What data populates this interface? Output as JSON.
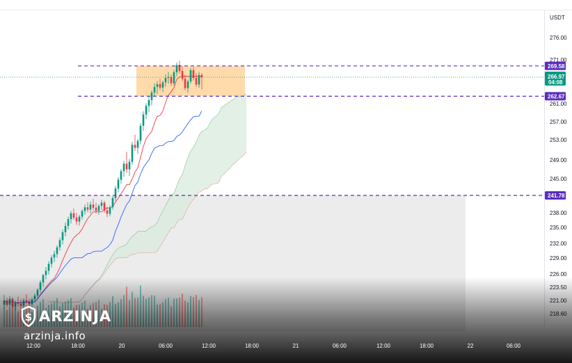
{
  "chart_data": {
    "type": "candlestick",
    "quote_currency": "USDT",
    "y_ticks": [
      "276.00",
      "271.00",
      "261.00",
      "257.00",
      "253.00",
      "249.00",
      "245.00",
      "238.00",
      "235.00",
      "232.00",
      "229.00",
      "226.00",
      "223.50",
      "221.00",
      "218.60"
    ],
    "x_ticks": [
      "12:00",
      "18:00",
      "20",
      "06:00",
      "12:00",
      "18:00",
      "21",
      "06:00",
      "12:00",
      "18:00",
      "22",
      "06:00"
    ],
    "levels": [
      {
        "value": 269.58,
        "label": "269.58"
      },
      {
        "value": 262.67,
        "label": "262.67"
      },
      {
        "value": 241.78,
        "label": "241.78"
      }
    ],
    "last_price": {
      "value": 266.97,
      "label": "266.97",
      "countdown": "04:08"
    },
    "zones": [
      {
        "type": "resistance",
        "low": 262.67,
        "high": 269.58
      },
      {
        "type": "range",
        "low": 215,
        "high": 241.78
      }
    ],
    "candles": [
      [
        220.2,
        222.0,
        219.5,
        221.0
      ],
      [
        221.0,
        221.5,
        219.8,
        220.2
      ],
      [
        220.2,
        221.8,
        219.9,
        221.3
      ],
      [
        221.3,
        221.6,
        219.6,
        219.9
      ],
      [
        219.9,
        221.0,
        219.2,
        220.6
      ],
      [
        220.6,
        221.7,
        219.9,
        220.4
      ],
      [
        220.4,
        221.2,
        219.5,
        220.0
      ],
      [
        220.0,
        221.4,
        219.6,
        221.0
      ],
      [
        221.0,
        222.2,
        220.4,
        220.7
      ],
      [
        220.7,
        221.3,
        219.9,
        220.3
      ],
      [
        220.3,
        221.5,
        219.8,
        221.2
      ],
      [
        221.2,
        222.3,
        220.6,
        221.9
      ],
      [
        221.9,
        223.3,
        221.3,
        223.0
      ],
      [
        223.0,
        224.8,
        222.5,
        224.4
      ],
      [
        224.4,
        226.0,
        223.6,
        225.8
      ],
      [
        225.8,
        227.3,
        225.0,
        226.6
      ],
      [
        226.6,
        228.4,
        225.9,
        227.9
      ],
      [
        227.9,
        229.6,
        227.2,
        229.1
      ],
      [
        229.1,
        230.5,
        228.2,
        229.8
      ],
      [
        229.8,
        231.6,
        229.0,
        231.2
      ],
      [
        231.2,
        233.1,
        230.5,
        232.6
      ],
      [
        232.6,
        234.6,
        231.8,
        234.1
      ],
      [
        234.1,
        236.0,
        233.3,
        235.3
      ],
      [
        235.3,
        237.2,
        234.6,
        236.7
      ],
      [
        236.7,
        238.4,
        235.8,
        237.9
      ],
      [
        237.9,
        238.9,
        236.5,
        237.0
      ],
      [
        237.0,
        238.0,
        235.5,
        236.2
      ],
      [
        236.2,
        237.6,
        235.4,
        237.2
      ],
      [
        237.2,
        238.8,
        236.6,
        238.4
      ],
      [
        238.4,
        239.8,
        237.6,
        239.2
      ],
      [
        239.2,
        240.3,
        238.1,
        238.7
      ],
      [
        238.7,
        240.4,
        237.9,
        239.8
      ],
      [
        239.8,
        241.0,
        238.5,
        239.1
      ],
      [
        239.1,
        240.2,
        237.9,
        238.4
      ],
      [
        238.4,
        239.9,
        237.6,
        239.5
      ],
      [
        239.5,
        240.8,
        238.6,
        240.2
      ],
      [
        240.2,
        240.6,
        238.0,
        238.5
      ],
      [
        238.5,
        239.3,
        237.1,
        237.8
      ],
      [
        237.8,
        239.6,
        237.3,
        239.2
      ],
      [
        239.2,
        241.6,
        238.7,
        241.2
      ],
      [
        241.2,
        243.6,
        240.6,
        243.1
      ],
      [
        243.1,
        245.3,
        242.4,
        244.8
      ],
      [
        244.8,
        247.1,
        244.0,
        246.6
      ],
      [
        246.6,
        248.8,
        245.4,
        248.2
      ],
      [
        248.2,
        250.6,
        246.2,
        247.0
      ],
      [
        247.0,
        249.2,
        245.6,
        248.6
      ],
      [
        248.6,
        252.6,
        248.0,
        252.0
      ],
      [
        252.0,
        254.1,
        250.8,
        251.4
      ],
      [
        251.4,
        253.2,
        250.2,
        252.8
      ],
      [
        252.8,
        256.7,
        252.1,
        256.1
      ],
      [
        256.1,
        259.3,
        255.0,
        258.6
      ],
      [
        258.6,
        261.1,
        257.6,
        260.5
      ],
      [
        260.5,
        262.6,
        259.2,
        261.8
      ],
      [
        261.8,
        264.0,
        260.6,
        263.5
      ],
      [
        263.5,
        265.6,
        262.6,
        264.8
      ],
      [
        264.8,
        266.1,
        263.2,
        265.4
      ],
      [
        265.4,
        266.6,
        264.0,
        264.6
      ],
      [
        264.6,
        266.2,
        263.6,
        265.8
      ],
      [
        265.8,
        267.6,
        264.8,
        266.8
      ],
      [
        266.8,
        268.2,
        265.5,
        267.0
      ],
      [
        267.0,
        267.6,
        265.0,
        265.6
      ],
      [
        265.6,
        268.6,
        265.1,
        268.1
      ],
      [
        268.1,
        270.4,
        267.2,
        269.8
      ],
      [
        269.8,
        270.8,
        267.8,
        268.4
      ],
      [
        268.4,
        269.4,
        266.1,
        266.6
      ],
      [
        266.6,
        267.5,
        264.0,
        264.5
      ],
      [
        264.5,
        266.4,
        263.5,
        266.0
      ],
      [
        266.0,
        269.1,
        265.5,
        268.6
      ],
      [
        268.6,
        269.3,
        266.2,
        266.8
      ],
      [
        266.8,
        267.9,
        264.8,
        265.3
      ],
      [
        265.3,
        268.2,
        264.6,
        267.5
      ],
      [
        267.5,
        267.9,
        264.2,
        266.97
      ]
    ]
  },
  "brand": {
    "name": "ARZINJA",
    "url": "arzinja.info",
    "logo_icon": "dollar-shield-icon"
  },
  "colors": {
    "up": "#089981",
    "down": "#f23645",
    "level_line": "#5b2dbf",
    "level_tag": "#5b2dbf",
    "last_price_tag": "#089981",
    "zone_fill": "#ffd59e",
    "range_fill": "#ececec",
    "base_line": "#2962ff",
    "conversion_line": "#f23645",
    "cloud_bull": "#d9ebdc",
    "cloud_bear": "#f7d7d7"
  }
}
